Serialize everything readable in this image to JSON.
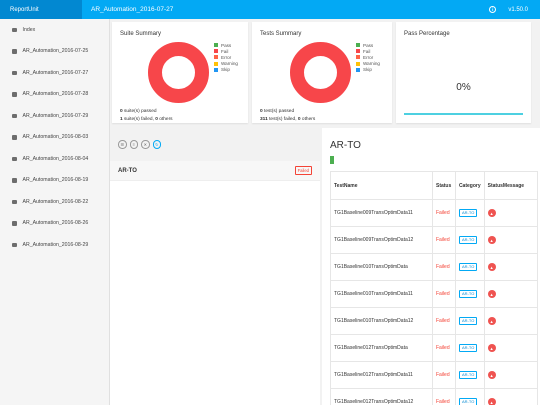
{
  "topbar": {
    "brand": "ReportUnit",
    "report_title": "AR_Automation_2016-07-27",
    "version": "v1.50.0"
  },
  "sidebar": {
    "items": [
      {
        "label": "Index"
      },
      {
        "label": "AR_Automation_2016-07-25"
      },
      {
        "label": "AR_Automation_2016-07-27"
      },
      {
        "label": "AR_Automation_2016-07-28"
      },
      {
        "label": "AR_Automation_2016-07-29"
      },
      {
        "label": "AR_Automation_2016-08-03"
      },
      {
        "label": "AR_Automation_2016-08-04"
      },
      {
        "label": "AR_Automation_2016-08-19"
      },
      {
        "label": "AR_Automation_2016-08-22"
      },
      {
        "label": "AR_Automation_2016-08-26"
      },
      {
        "label": "AR_Automation_2016-08-29"
      }
    ]
  },
  "legend": [
    {
      "label": "Pass",
      "color": "#4caf50"
    },
    {
      "label": "Fail",
      "color": "#f7464a"
    },
    {
      "label": "Error",
      "color": "#ff6347"
    },
    {
      "label": "Warning",
      "color": "#ffc107"
    },
    {
      "label": "Skip",
      "color": "#2196f3"
    }
  ],
  "suite_summary": {
    "title": "Suite Summary",
    "passed_count": "0",
    "passed_text": "suite(s) passed",
    "failed_count": "1",
    "failed_text": "suite(s) failed,",
    "others_count": "0",
    "others_text": "others"
  },
  "tests_summary": {
    "title": "Tests Summary",
    "passed_count": "0",
    "passed_text": "test(s) passed",
    "failed_count": "311",
    "failed_text": "test(s) failed,",
    "others_count": "0",
    "others_text": "others"
  },
  "pass_percentage": {
    "title": "Pass Percentage",
    "value": "0%",
    "fraction": 0
  },
  "suite_list": {
    "name": "AR-TO",
    "status": "Failed"
  },
  "detail": {
    "title": "AR-TO",
    "headers": {
      "name": "TestName",
      "status": "Status",
      "category": "Category",
      "message": "StatusMessage"
    },
    "rows": [
      {
        "name": "TG1Baseline009TransOptimData11",
        "status": "Failed",
        "category": "AR-TO"
      },
      {
        "name": "TG1Baseline009TransOptimData12",
        "status": "Failed",
        "category": "AR-TO"
      },
      {
        "name": "TG1Baseline010TransOptimData",
        "status": "Failed",
        "category": "AR-TO"
      },
      {
        "name": "TG1Baseline010TransOptimData11",
        "status": "Failed",
        "category": "AR-TO"
      },
      {
        "name": "TG1Baseline010TransOptimData12",
        "status": "Failed",
        "category": "AR-TO"
      },
      {
        "name": "TG1Baseline012TransOptimData",
        "status": "Failed",
        "category": "AR-TO"
      },
      {
        "name": "TG1Baseline012TransOptimData11",
        "status": "Failed",
        "category": "AR-TO"
      },
      {
        "name": "TG1Baseline012TransOptimData12",
        "status": "Failed",
        "category": "AR-TO"
      }
    ]
  }
}
